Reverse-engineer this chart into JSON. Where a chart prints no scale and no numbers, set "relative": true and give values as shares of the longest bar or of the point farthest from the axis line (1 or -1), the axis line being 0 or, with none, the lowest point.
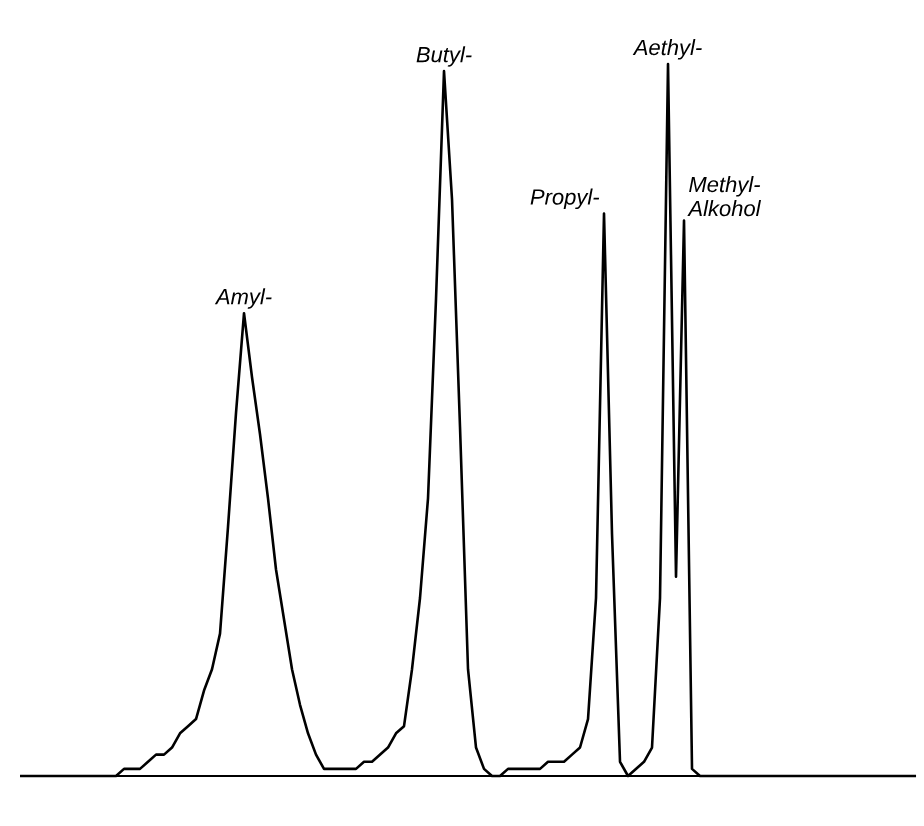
{
  "chart_data": {
    "type": "line",
    "relative": true,
    "marker": "none",
    "line_style": "solid",
    "categories": [
      null,
      null,
      null,
      null,
      null,
      null,
      null,
      null,
      null,
      null,
      null,
      null,
      null,
      null,
      null,
      null,
      null,
      null,
      null,
      null,
      null,
      null,
      null,
      null,
      null,
      null,
      null,
      null,
      null,
      null,
      null,
      null,
      null,
      null,
      null,
      null,
      null,
      null,
      null,
      null,
      null,
      null,
      null,
      null,
      null,
      null,
      null,
      null,
      null,
      null,
      null,
      null,
      null,
      null,
      null,
      null,
      null,
      null,
      null,
      null,
      null,
      null,
      null,
      null,
      null,
      null,
      null,
      null,
      null,
      null,
      null,
      null,
      null,
      null,
      null,
      null,
      null,
      null,
      null,
      null,
      null,
      null,
      null,
      null,
      null,
      null,
      null,
      null,
      null,
      null,
      null,
      null,
      null,
      null,
      null,
      null,
      null,
      null,
      null,
      null,
      null,
      null,
      null,
      null,
      null,
      null,
      null,
      null,
      null,
      null,
      null,
      null,
      null
    ],
    "series": [
      {
        "color": "#000000",
        "values": [
          0,
          0,
          0,
          0,
          0,
          0,
          0,
          0,
          0,
          0,
          0,
          0,
          0,
          0.01,
          0.01,
          0.01,
          0.02,
          0.03,
          0.03,
          0.04,
          0.06,
          0.07,
          0.08,
          0.12,
          0.15,
          0.2,
          0.35,
          0.51,
          0.65,
          0.56,
          0.48,
          0.39,
          0.29,
          0.22,
          0.15,
          0.1,
          0.06,
          0.03,
          0.01,
          0.01,
          0.01,
          0.01,
          0.01,
          0.02,
          0.02,
          0.03,
          0.04,
          0.06,
          0.07,
          0.15,
          0.25,
          0.39,
          0.67,
          0.99,
          0.81,
          0.49,
          0.15,
          0.04,
          0.01,
          0,
          0,
          0.01,
          0.01,
          0.01,
          0.01,
          0.01,
          0.02,
          0.02,
          0.02,
          0.03,
          0.04,
          0.08,
          0.25,
          0.79,
          0.34,
          0.02,
          0,
          0.01,
          0.02,
          0.04,
          0.25,
          1,
          0.28,
          0.78,
          0.01,
          0,
          0,
          0,
          0,
          0,
          0,
          0,
          0,
          0,
          0,
          0,
          0,
          0,
          0,
          0,
          0,
          0,
          0,
          0,
          0,
          0,
          0,
          0,
          0,
          0,
          0,
          0,
          0
        ]
      }
    ],
    "annotations": [
      "Amyl-",
      "Butyl-",
      "Propyl-",
      "Aethyl-",
      "Methyl- Alkohol"
    ]
  }
}
